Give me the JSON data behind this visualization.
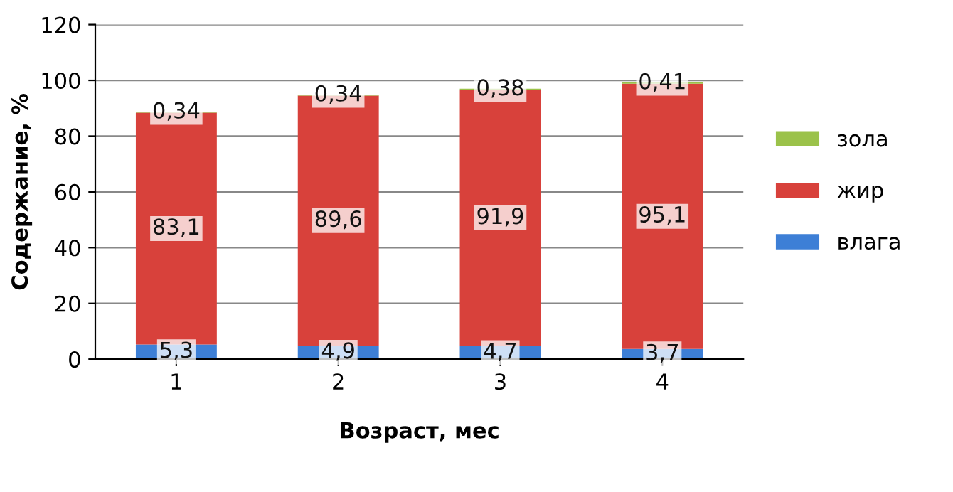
{
  "chart_data": {
    "type": "bar",
    "stacked": true,
    "categories": [
      "1",
      "2",
      "3",
      "4"
    ],
    "xlabel": "Возраст, мес",
    "ylabel": "Содержание, %",
    "ylim": [
      0,
      120
    ],
    "yticks": [
      0,
      20,
      40,
      60,
      80,
      100,
      120
    ],
    "grid": "y",
    "legend": "right",
    "series": [
      {
        "name": "влага",
        "color": "#3d7fd6",
        "values": [
          5.3,
          4.9,
          4.7,
          3.7
        ],
        "value_labels": [
          "5,3",
          "4,9",
          "4,7",
          "3,7"
        ]
      },
      {
        "name": "жир",
        "color": "#d8413b",
        "values": [
          83.1,
          89.6,
          91.9,
          95.1
        ],
        "value_labels": [
          "83,1",
          "89,6",
          "91,9",
          "95,1"
        ]
      },
      {
        "name": "зола",
        "color": "#9bc24a",
        "values": [
          0.34,
          0.34,
          0.38,
          0.41
        ],
        "value_labels": [
          "0,34",
          "0,34",
          "0,38",
          "0,41"
        ]
      }
    ]
  }
}
